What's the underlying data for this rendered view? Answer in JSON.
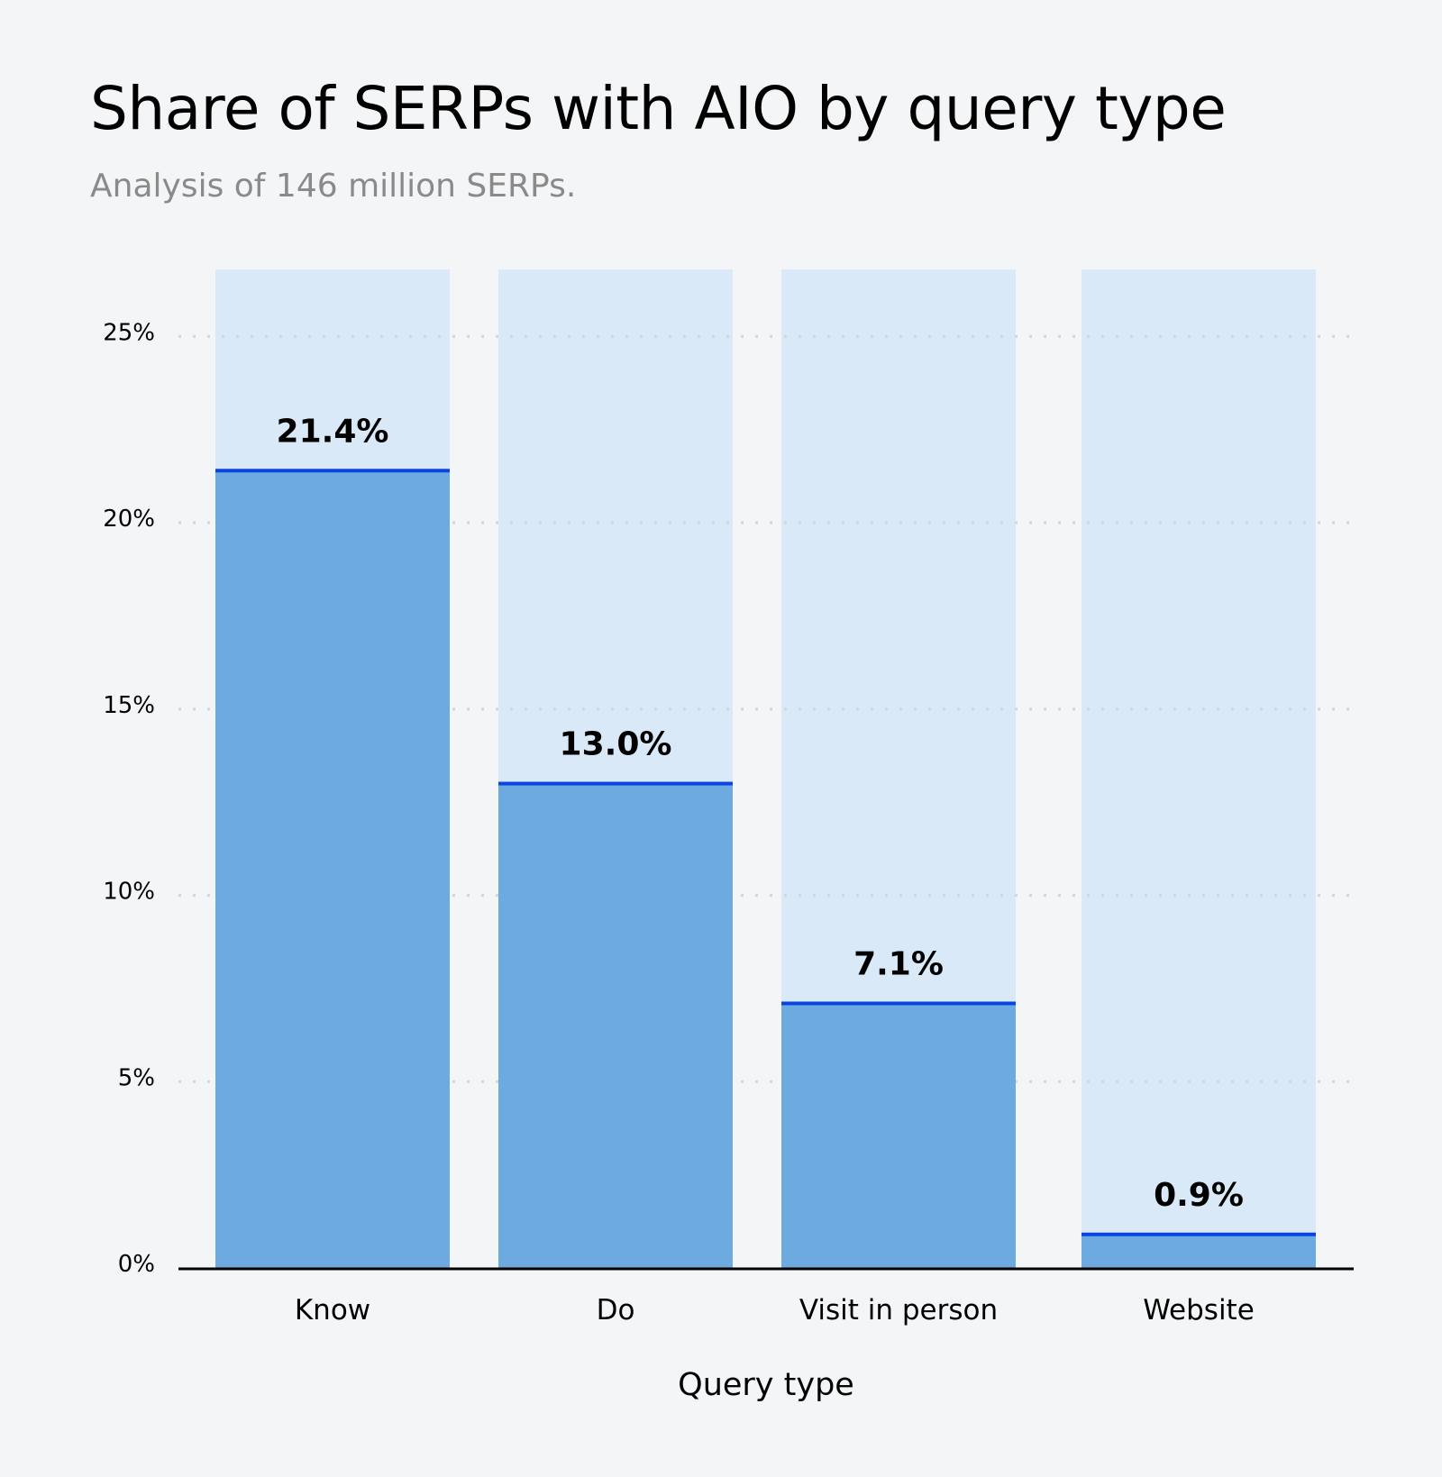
{
  "chart_data": {
    "type": "bar",
    "title": "Share of SERPs with AIO by query type",
    "subtitle": "Analysis of 146 million SERPs.",
    "xlabel": "Query type",
    "ylabel": "",
    "categories": [
      "Know",
      "Do",
      "Visit in person",
      "Website"
    ],
    "values": [
      21.4,
      13.0,
      7.1,
      0.9
    ],
    "data_labels": [
      "21.4%",
      "13.0%",
      "7.1%",
      "0.9%"
    ],
    "ylim": [
      0,
      26.8
    ],
    "yticks": [
      0,
      5,
      10,
      15,
      20,
      25
    ],
    "ytick_labels": [
      "0%",
      "5%",
      "10%",
      "15%",
      "20%",
      "25%"
    ],
    "grid": true,
    "colors": {
      "fill": "#6caae0",
      "background_bar": "#d9e9f8",
      "top_line": "#0b44e0",
      "grid": "#d4d6d9"
    }
  }
}
